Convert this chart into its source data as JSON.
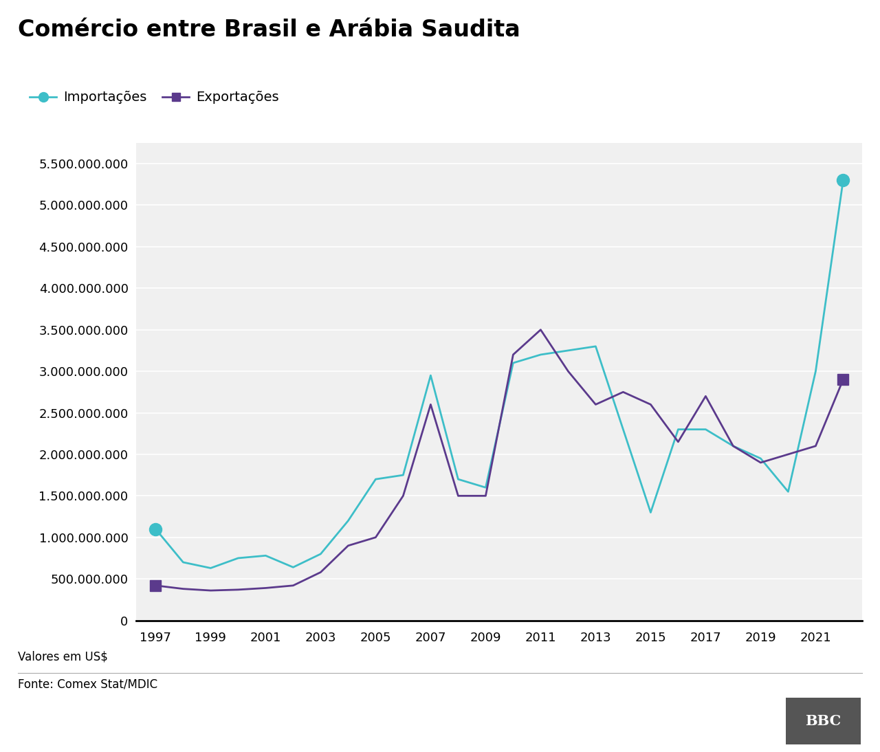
{
  "title": "Comércio entre Brasil e Arábia Saudita",
  "legend_importacoes": "Importações",
  "legend_exportacoes": "Exportações",
  "subtitle": "Valores em US$",
  "source": "Fonte: Comex Stat/MDIC",
  "bbc_label": "BBC",
  "years": [
    1997,
    1998,
    1999,
    2000,
    2001,
    2002,
    2003,
    2004,
    2005,
    2006,
    2007,
    2008,
    2009,
    2010,
    2011,
    2012,
    2013,
    2014,
    2015,
    2016,
    2017,
    2018,
    2019,
    2020,
    2021,
    2022
  ],
  "importacoes": [
    1100000000,
    700000000,
    630000000,
    750000000,
    780000000,
    640000000,
    800000000,
    1200000000,
    1700000000,
    1750000000,
    2950000000,
    1700000000,
    1600000000,
    3100000000,
    3200000000,
    3250000000,
    3300000000,
    2300000000,
    1300000000,
    2300000000,
    2300000000,
    2100000000,
    1950000000,
    1550000000,
    3000000000,
    5300000000
  ],
  "exportacoes": [
    420000000,
    380000000,
    360000000,
    370000000,
    390000000,
    420000000,
    580000000,
    900000000,
    1000000000,
    1500000000,
    2600000000,
    1500000000,
    1500000000,
    3200000000,
    3500000000,
    3000000000,
    2600000000,
    2750000000,
    2600000000,
    2150000000,
    2700000000,
    2100000000,
    1900000000,
    2000000000,
    2100000000,
    2900000000
  ],
  "importacoes_color": "#3dbec8",
  "exportacoes_color": "#5b3a8c",
  "ylim": [
    0,
    5750000000
  ],
  "yticks": [
    0,
    500000000,
    1000000000,
    1500000000,
    2000000000,
    2500000000,
    3000000000,
    3500000000,
    4000000000,
    4500000000,
    5000000000,
    5500000000
  ],
  "xticks": [
    1997,
    1999,
    2001,
    2003,
    2005,
    2007,
    2009,
    2011,
    2013,
    2015,
    2017,
    2019,
    2021
  ],
  "background_color": "#ffffff",
  "plot_bg_color": "#f0f0f0",
  "grid_color": "#ffffff",
  "title_fontsize": 24,
  "axis_fontsize": 13,
  "legend_fontsize": 14,
  "line_width": 2.0
}
